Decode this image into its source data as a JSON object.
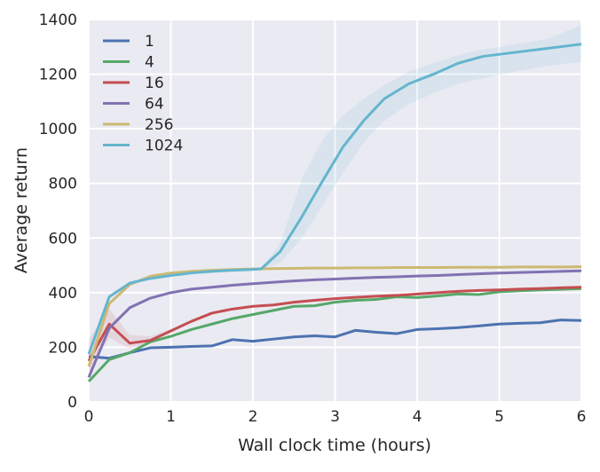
{
  "chart_data": {
    "type": "line",
    "xlabel": "Wall clock time (hours)",
    "ylabel": "Average return",
    "xlim": [
      0,
      6
    ],
    "ylim": [
      0,
      1400
    ],
    "xticks": [
      "0",
      "1",
      "2",
      "3",
      "4",
      "5",
      "6"
    ],
    "yticks": [
      "0",
      "200",
      "400",
      "600",
      "800",
      "1000",
      "1200",
      "1400"
    ],
    "grid": true,
    "legend": "top-left",
    "background": "#EAEAF2",
    "series": [
      {
        "name": "1",
        "color": "#4C72B0",
        "x": [
          0,
          0.25,
          0.5,
          0.75,
          1,
          1.25,
          1.5,
          1.75,
          2,
          2.25,
          2.5,
          2.75,
          3,
          3.25,
          3.5,
          3.75,
          4,
          4.25,
          4.5,
          4.75,
          5,
          5.25,
          5.5,
          5.75,
          6
        ],
        "y": [
          166,
          160,
          180,
          198,
          200,
          203,
          205,
          228,
          222,
          230,
          238,
          242,
          238,
          262,
          255,
          250,
          265,
          268,
          272,
          278,
          285,
          288,
          290,
          300,
          298
        ]
      },
      {
        "name": "4",
        "color": "#55A868",
        "x": [
          0,
          0.25,
          0.5,
          0.75,
          1,
          1.25,
          1.5,
          1.75,
          2,
          2.25,
          2.5,
          2.75,
          3,
          3.25,
          3.5,
          3.75,
          4,
          4.25,
          4.5,
          4.75,
          5,
          5.25,
          5.5,
          5.75,
          6
        ],
        "y": [
          75,
          155,
          180,
          220,
          240,
          265,
          285,
          305,
          320,
          335,
          350,
          352,
          365,
          372,
          375,
          385,
          382,
          388,
          395,
          393,
          403,
          407,
          410,
          412,
          415
        ]
      },
      {
        "name": "16",
        "color": "#C44E52",
        "x": [
          0,
          0.25,
          0.5,
          0.75,
          1,
          1.25,
          1.5,
          1.75,
          2,
          2.25,
          2.5,
          2.75,
          3,
          3.25,
          3.5,
          3.75,
          4,
          4.25,
          4.5,
          4.75,
          5,
          5.25,
          5.5,
          5.75,
          6
        ],
        "y": [
          150,
          285,
          215,
          225,
          260,
          295,
          325,
          340,
          350,
          355,
          365,
          372,
          378,
          383,
          387,
          390,
          395,
          400,
          405,
          408,
          410,
          413,
          415,
          418,
          420
        ],
        "band_lower": [
          110,
          235,
          195,
          215,
          255,
          292,
          322,
          338,
          348,
          353,
          363,
          370,
          376,
          381,
          385,
          388,
          393,
          398,
          403,
          406,
          408,
          411,
          413,
          416,
          418
        ],
        "band_upper": [
          230,
          340,
          245,
          240,
          268,
          300,
          330,
          344,
          353,
          358,
          368,
          375,
          381,
          386,
          390,
          393,
          398,
          403,
          408,
          411,
          413,
          416,
          418,
          421,
          423
        ]
      },
      {
        "name": "64",
        "color": "#8172B2",
        "x": [
          0,
          0.25,
          0.5,
          0.75,
          1,
          1.25,
          1.5,
          1.75,
          2,
          2.25,
          2.5,
          2.75,
          3,
          3.25,
          3.5,
          3.75,
          4,
          4.25,
          4.5,
          4.75,
          5,
          5.25,
          5.5,
          5.75,
          6
        ],
        "y": [
          90,
          270,
          345,
          380,
          400,
          413,
          420,
          427,
          433,
          438,
          443,
          447,
          450,
          453,
          456,
          458,
          461,
          463,
          466,
          469,
          472,
          474,
          476,
          478,
          480
        ]
      },
      {
        "name": "256",
        "color": "#CCB974",
        "x": [
          0,
          0.25,
          0.5,
          0.75,
          1,
          1.25,
          1.5,
          1.75,
          2,
          2.25,
          2.5,
          2.75,
          3,
          3.25,
          3.5,
          3.75,
          4,
          4.25,
          4.5,
          4.75,
          5,
          5.25,
          5.5,
          5.75,
          6
        ],
        "y": [
          130,
          360,
          430,
          460,
          472,
          478,
          482,
          485,
          487,
          488,
          489,
          490,
          490,
          491,
          491,
          492,
          492,
          492,
          493,
          493,
          493,
          494,
          494,
          494,
          495
        ]
      },
      {
        "name": "1024",
        "color": "#64B5CD",
        "x": [
          0,
          0.25,
          0.5,
          0.75,
          1,
          1.25,
          1.5,
          1.75,
          2,
          2.1,
          2.33,
          2.6,
          2.85,
          3.1,
          3.35,
          3.6,
          3.9,
          4.2,
          4.5,
          4.8,
          5.2,
          5.6,
          6
        ],
        "y": [
          175,
          385,
          435,
          452,
          463,
          472,
          478,
          482,
          485,
          487,
          550,
          680,
          810,
          935,
          1030,
          1110,
          1165,
          1200,
          1240,
          1265,
          1280,
          1295,
          1310
        ],
        "band_lower": [
          165,
          380,
          432,
          450,
          461,
          470,
          476,
          480,
          483,
          485,
          510,
          600,
          720,
          840,
          950,
          1030,
          1090,
          1130,
          1165,
          1185,
          1210,
          1230,
          1245
        ],
        "band_upper": [
          185,
          390,
          438,
          455,
          465,
          474,
          480,
          484,
          487,
          489,
          580,
          820,
          960,
          1050,
          1110,
          1160,
          1210,
          1240,
          1270,
          1290,
          1310,
          1330,
          1380
        ]
      }
    ]
  }
}
